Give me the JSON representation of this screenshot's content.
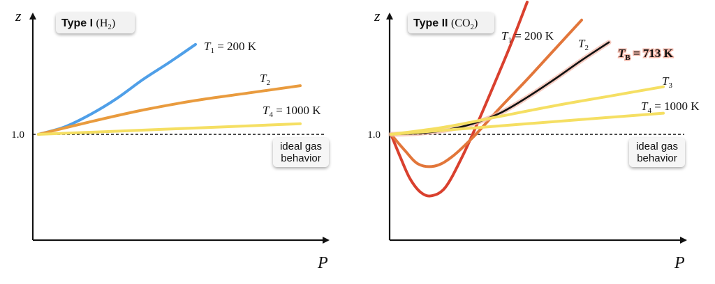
{
  "colors": {
    "blue": "#4f9fe8",
    "orange": "#e99b3e",
    "yellow": "#f5df63",
    "dark_orange": "#e2763a",
    "red": "#d9402e",
    "black": "#111111",
    "badge_bg": "#f2f2f2",
    "bold_glow": "#f2b6a8"
  },
  "chart_data": [
    {
      "type": "line",
      "title_bold": "Type I",
      "title_formula": "(H",
      "title_sub": "2",
      "title_close": ")",
      "xlabel": "P",
      "ylabel": "z",
      "y_tick_label": "1.0",
      "reference_line": {
        "y": 1.0,
        "style": "dashed",
        "label_line1": "ideal gas",
        "label_line2": "behavior"
      },
      "xlim": [
        0,
        10
      ],
      "ylim": [
        0,
        2.2
      ],
      "series": [
        {
          "name": "T1 = 200 K",
          "label_main": "T",
          "label_sub": "1",
          "label_rest": " = 200 K",
          "color_key": "blue",
          "x": [
            0,
            1,
            2,
            3,
            4,
            5,
            6
          ],
          "y": [
            1.0,
            1.07,
            1.19,
            1.34,
            1.52,
            1.68,
            1.85
          ]
        },
        {
          "name": "T2",
          "label_main": "T",
          "label_sub": "2",
          "label_rest": "",
          "color_key": "orange",
          "x": [
            0,
            2,
            4,
            6,
            8,
            10
          ],
          "y": [
            1.0,
            1.12,
            1.23,
            1.32,
            1.39,
            1.46
          ]
        },
        {
          "name": "T4 = 1000 K",
          "label_main": "T",
          "label_sub": "4",
          "label_rest": " = 1000 K",
          "color_key": "yellow",
          "x": [
            0,
            5,
            10
          ],
          "y": [
            1.0,
            1.05,
            1.1
          ]
        }
      ]
    },
    {
      "type": "line",
      "title_bold": "Type II",
      "title_formula": "(CO",
      "title_sub": "2",
      "title_close": ")",
      "xlabel": "P",
      "ylabel": "z",
      "y_tick_label": "1.0",
      "reference_line": {
        "y": 1.0,
        "style": "dashed",
        "label_line1": "ideal gas",
        "label_line2": "behavior"
      },
      "xlim": [
        0,
        10
      ],
      "ylim": [
        0,
        2.2
      ],
      "series": [
        {
          "name": "T1 = 200 K",
          "label_main": "T",
          "label_sub": "1",
          "label_rest": " = 200 K",
          "color_key": "red",
          "x": [
            0,
            0.35,
            0.7,
            1.1,
            1.5,
            2.0,
            2.6,
            3.2,
            3.8,
            4.4,
            5.0
          ],
          "y": [
            1.0,
            0.78,
            0.58,
            0.45,
            0.42,
            0.5,
            0.78,
            1.12,
            1.48,
            1.85,
            2.25
          ]
        },
        {
          "name": "T2",
          "label_main": "T",
          "label_sub": "2",
          "label_rest": "",
          "color_key": "dark_orange",
          "x": [
            0,
            0.5,
            1.0,
            1.6,
            2.2,
            3.0,
            4.0,
            5.0,
            6.0,
            7.0
          ],
          "y": [
            1.0,
            0.85,
            0.72,
            0.7,
            0.78,
            0.97,
            1.25,
            1.52,
            1.8,
            2.08
          ]
        },
        {
          "name": "TB = 713 K",
          "label_main": "T",
          "label_sub": "B",
          "label_rest": " = 713 K",
          "bold": true,
          "color_key": "black",
          "x": [
            0,
            1,
            2,
            3,
            4,
            5,
            6,
            7,
            8
          ],
          "y": [
            1.0,
            1.01,
            1.04,
            1.1,
            1.2,
            1.35,
            1.52,
            1.7,
            1.87
          ]
        },
        {
          "name": "T3",
          "label_main": "T",
          "label_sub": "3",
          "label_rest": "",
          "color_key": "yellow",
          "x": [
            0,
            2,
            4,
            6,
            8,
            10
          ],
          "y": [
            1.0,
            1.07,
            1.17,
            1.27,
            1.36,
            1.45
          ]
        },
        {
          "name": "T4 = 1000 K",
          "label_main": "T",
          "label_sub": "4",
          "label_rest": " = 1000 K",
          "color_key": "yellow",
          "x": [
            0,
            5,
            10
          ],
          "y": [
            1.0,
            1.1,
            1.2
          ]
        }
      ]
    }
  ]
}
